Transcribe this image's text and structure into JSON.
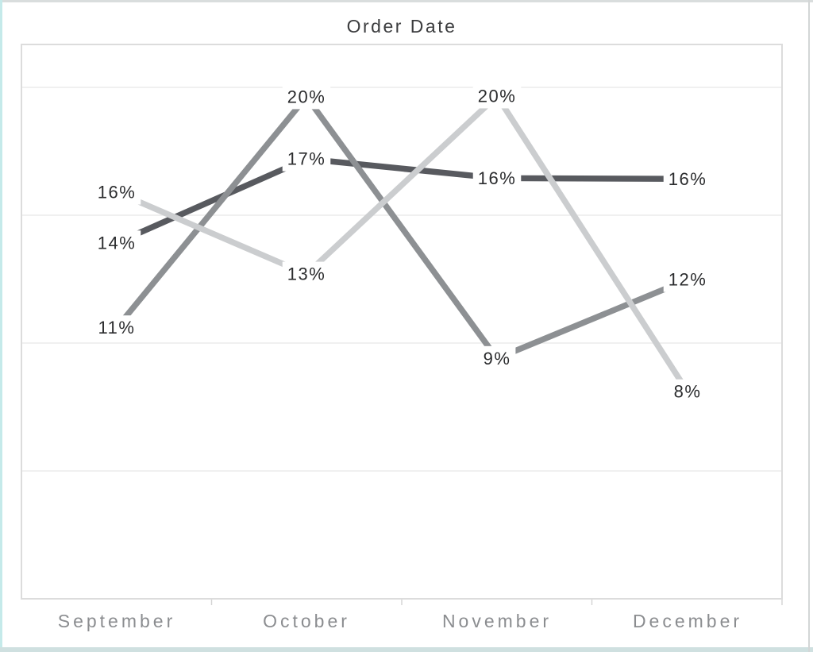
{
  "chart_data": {
    "type": "line",
    "title": "Order Date",
    "categories": [
      "September",
      "October",
      "November",
      "December"
    ],
    "series": [
      {
        "id": "series-1-dark",
        "color": "#585a5f",
        "values": [
          14,
          17,
          16,
          16
        ],
        "labels": [
          "14%",
          "17%",
          "16%",
          "16%"
        ]
      },
      {
        "id": "series-2-medium",
        "color": "#8d9093",
        "values": [
          11,
          20,
          9,
          12
        ],
        "labels": [
          "11%",
          "20%",
          "9%",
          "12%"
        ]
      },
      {
        "id": "series-3-light",
        "color": "#cbcdcf",
        "values": [
          16,
          13,
          20,
          8
        ],
        "labels": [
          "16%",
          "13%",
          "20%",
          "8%"
        ]
      }
    ],
    "y_axis": {
      "visible": false,
      "unit": "percent",
      "min": 0,
      "max": 21.7,
      "grid_step": 5
    },
    "x_axis": {
      "side": "bottom",
      "tick_marks_between_categories": true
    },
    "legend": "none",
    "grid": true,
    "label_style": "value-labels-centered-on-points-with-white-halo",
    "layout_hints": {
      "precise_values": [
        [
          13.92,
          17.2,
          16.45,
          16.42
        ],
        [
          10.6,
          19.63,
          9.4,
          12.48
        ],
        [
          15.9,
          12.7,
          19.66,
          8.1
        ]
      ]
    },
    "colors": {
      "title_text": "#3b3c3e",
      "data_label_text": "#2b2c2e",
      "axis_label_text": "#8b8d90",
      "gridline": "#ececec",
      "plot_border": "#dcdcdc",
      "tick": "#d3d3d3",
      "background": "#ffffff"
    }
  }
}
